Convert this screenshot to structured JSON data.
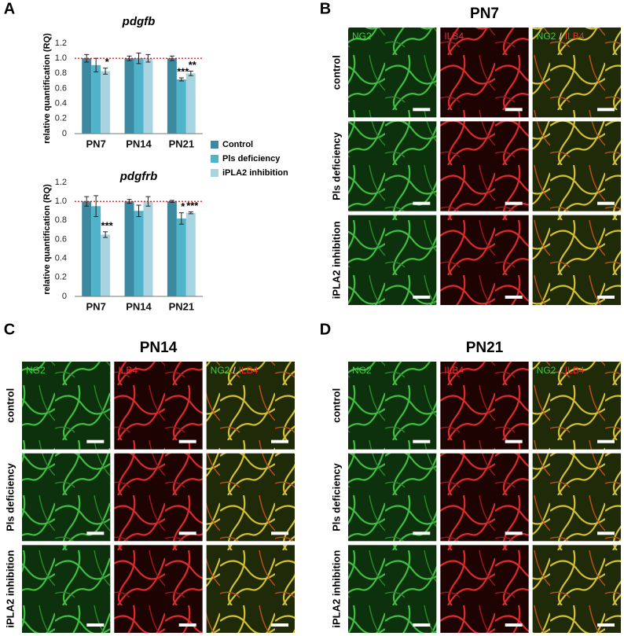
{
  "chart_data": [
    {
      "type": "bar",
      "title": "pdgfb",
      "y_label": "relative quantification (RQ)",
      "categories": [
        "PN7",
        "PN14",
        "PN21"
      ],
      "series": [
        {
          "name": "Control",
          "color": "#3b8aa1",
          "values": [
            1.0,
            1.0,
            1.0
          ],
          "errors": [
            0.05,
            0.03,
            0.03
          ],
          "annotations": [
            null,
            null,
            null
          ]
        },
        {
          "name": "Pls deficiency",
          "color": "#4fb4c9",
          "values": [
            0.91,
            1.0,
            0.72
          ],
          "errors": [
            0.09,
            0.07,
            0.02
          ],
          "annotations": [
            null,
            null,
            "***"
          ]
        },
        {
          "name": "iPLA2 inhibition",
          "color": "#a8d4e1",
          "values": [
            0.83,
            1.0,
            0.8
          ],
          "errors": [
            0.04,
            0.05,
            0.03
          ],
          "annotations": [
            "*",
            null,
            "**"
          ]
        }
      ],
      "ylim": [
        0,
        1.2
      ],
      "yticks": [
        0,
        0.2,
        0.4,
        0.6,
        0.8,
        {
          "value": 1,
          "label": "1.0"
        },
        1.2
      ],
      "reference_line": 1,
      "reference_color": "#c00000",
      "grid": false
    },
    {
      "type": "bar",
      "title": "pdgfrb",
      "y_label": "relative quantification (RQ)",
      "categories": [
        "PN7",
        "PN14",
        "PN21"
      ],
      "series": [
        {
          "color": "#3b8aa1",
          "values": [
            1.0,
            1.0,
            1.0
          ],
          "errors": [
            0.05,
            0.02,
            0.01
          ],
          "annotations": [
            null,
            null,
            null
          ]
        },
        {
          "color": "#4fb4c9",
          "values": [
            0.95,
            0.9,
            0.82
          ],
          "errors": [
            0.11,
            0.06,
            0.06
          ],
          "annotations": [
            null,
            null,
            "*"
          ]
        },
        {
          "color": "#a8d4e1",
          "values": [
            0.65,
            1.0,
            0.88
          ],
          "errors": [
            0.03,
            0.05,
            0.01
          ],
          "annotations": [
            "***",
            null,
            "***"
          ]
        }
      ],
      "ylim": [
        0,
        1.2
      ],
      "yticks": [
        0,
        0.2,
        0.4,
        0.6,
        0.8,
        {
          "value": 1,
          "label": "1.0"
        },
        1.2
      ],
      "reference_line": 1,
      "reference_color": "#c00000",
      "grid": false
    }
  ],
  "panel_letters": [
    "A",
    "B",
    "C",
    "D"
  ],
  "image_panels": [
    {
      "title": "PN7",
      "rows": [
        "control",
        "Pls deficiency",
        "iPLA2 inhibition"
      ],
      "channels": [
        "NG2",
        "ILB4"
      ],
      "separator": "/"
    },
    {
      "title": "PN14",
      "rows": [
        "control",
        "Pls deficiency",
        "iPLA2 inhibition"
      ],
      "channels": [
        "NG2",
        "ILB4"
      ],
      "separator": "/"
    },
    {
      "title": "PN21",
      "rows": [
        "control",
        "Pls deficiency",
        "iPLA2 inhibition"
      ],
      "channels": [
        "NG2",
        "ILB4"
      ],
      "separator": "/"
    }
  ]
}
